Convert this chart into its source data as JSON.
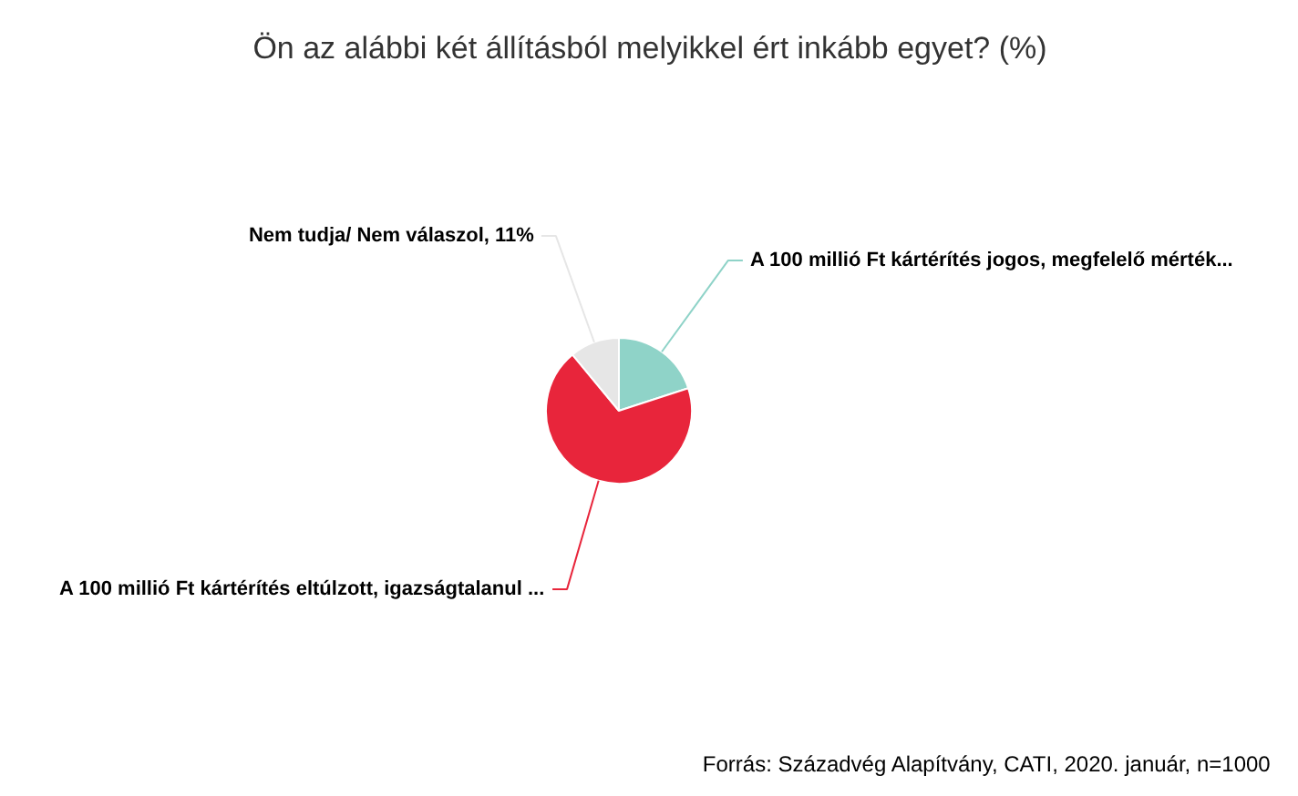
{
  "chart_data": {
    "type": "pie",
    "title": "Ön az alábbi két állításból melyikkel ért inkább egyet? (%)",
    "categories": [
      "A 100 millió Ft kártérítés jogos, megfelelő mérték...",
      "A 100 millió Ft kártérítés eltúlzott, igazságtalanul ...",
      "Nem tudja/ Nem válaszol"
    ],
    "values": [
      20,
      69,
      11
    ],
    "colors": [
      "#8fd3c8",
      "#e8253b",
      "#e6e6e6"
    ],
    "value_labels": [
      null,
      null,
      "11%"
    ],
    "annotations": [
      "Forrás: Századvég Alapítvány, CATI, 2020. január, n=1000"
    ]
  }
}
